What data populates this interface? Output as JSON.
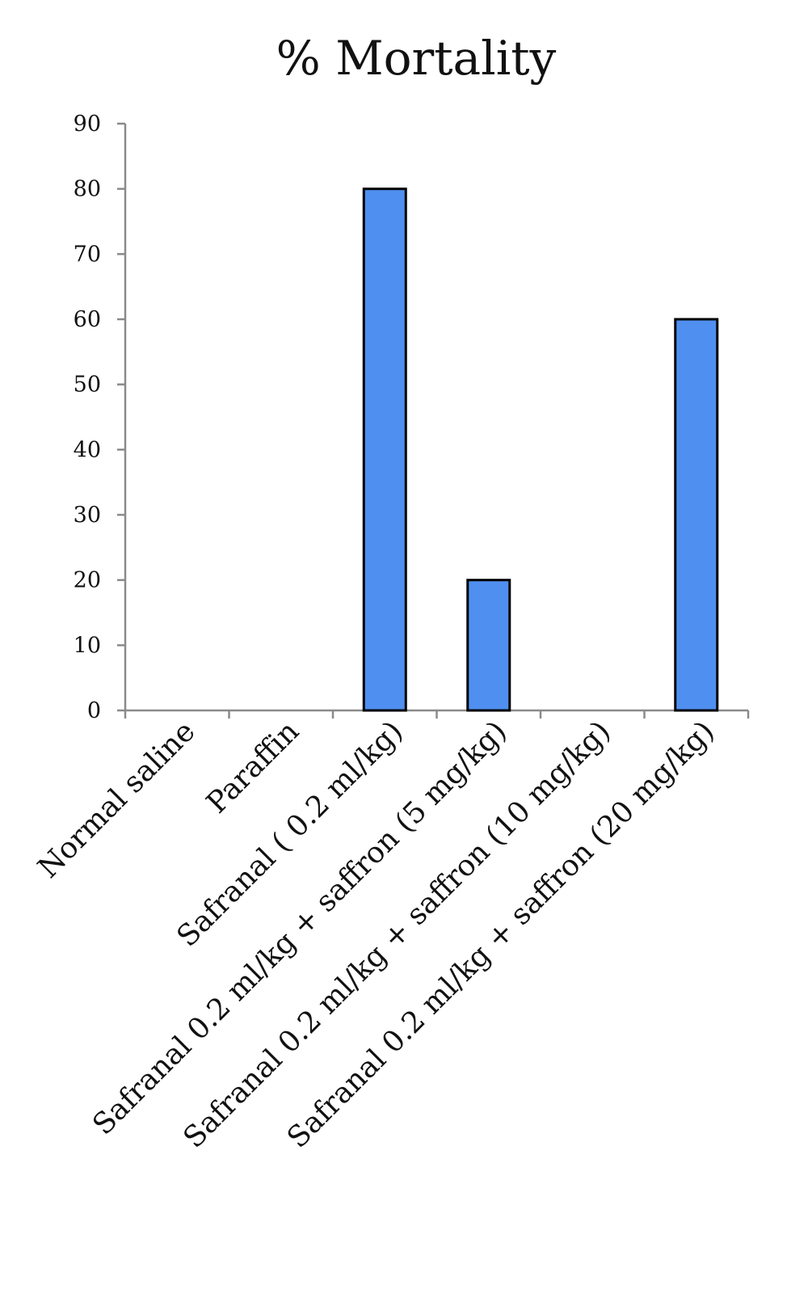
{
  "chart_data": {
    "type": "bar",
    "title": "% Mortality",
    "xlabel": "",
    "ylabel": "",
    "categories": [
      "Normal saline",
      "Paraffin",
      "Safranal ( 0.2 ml/kg)",
      "Safranal 0.2 ml/kg + saffron (5 mg/kg)",
      "Safranal 0.2 ml/kg + saffron (10 mg/kg)",
      "Safranal 0.2 ml/kg + saffron (20 mg/kg)"
    ],
    "values": [
      0,
      0,
      80,
      20,
      0,
      60
    ],
    "ylim": [
      0,
      90
    ],
    "yticks": [
      0,
      10,
      20,
      30,
      40,
      50,
      60,
      70,
      80,
      90
    ],
    "grid": false,
    "legend": "none",
    "colors": {
      "bar_fill": "#4f8ff0",
      "bar_stroke": "#000000",
      "axis": "#8a8a8a"
    }
  }
}
